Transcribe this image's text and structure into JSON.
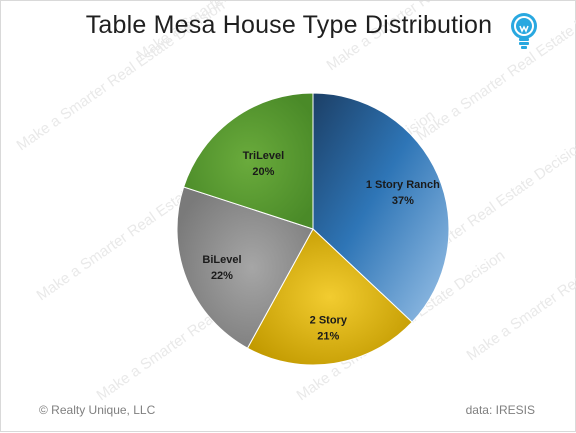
{
  "title": "Table Mesa House Type Distribution",
  "footer": {
    "copyright": "© Realty Unique, LLC",
    "source": "data:  IRESIS"
  },
  "watermark_text": "Make a Smarter Real Estate Decision",
  "logo_icon": "lightbulb-icon",
  "colors": {
    "1 Story Ranch": "#2e75b6",
    "2 Story": "#d4a800",
    "BiLevel": "#8c8c8c",
    "TriLevel": "#5b9a32"
  },
  "chart_data": {
    "type": "pie",
    "title": "Table Mesa House Type Distribution",
    "categories": [
      "1 Story Ranch",
      "2 Story",
      "BiLevel",
      "TriLevel"
    ],
    "values": [
      37,
      21,
      22,
      20
    ],
    "labels": [
      "37%",
      "21%",
      "22%",
      "20%"
    ],
    "start_angle_deg": 0,
    "direction": "clockwise"
  }
}
